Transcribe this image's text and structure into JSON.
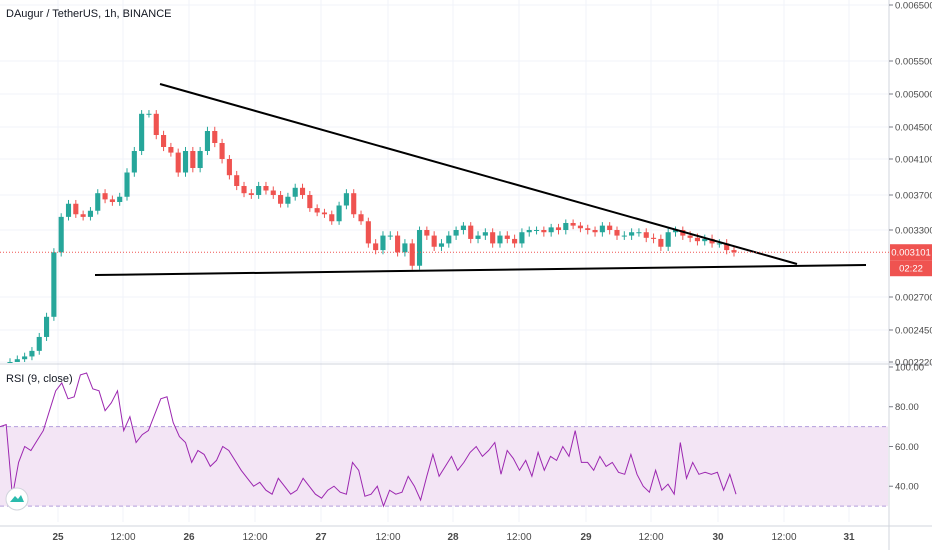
{
  "header": {
    "title": "DAugur / TetherUS, 1h, BINANCE"
  },
  "rsi": {
    "title": "RSI (9, close)"
  },
  "colors": {
    "up": "#26a69a",
    "down": "#ef5350",
    "trendline": "#000000",
    "rsi_line": "#9c27b0",
    "rsi_band": "#f3e5f5",
    "price_line": "#ef5350",
    "grid": "#f0f3fa"
  },
  "icons": {
    "logo": "tradingview-logo-icon"
  },
  "chart_data": [
    {
      "type": "candlestick",
      "title": "DAugur / TetherUS, 1h, BINANCE",
      "ylim": [
        0.0022,
        0.0065
      ],
      "y_ticks": [
        "0.006500",
        "0.005500",
        "0.005000",
        "0.004500",
        "0.004100",
        "0.003700",
        "0.003300",
        "0.002700",
        "0.002450",
        "0.002220"
      ],
      "x_ticks": [
        "25",
        "12:00",
        "26",
        "12:00",
        "27",
        "12:00",
        "28",
        "12:00",
        "29",
        "12:00",
        "30",
        "12:00",
        "31"
      ],
      "last_price_label": "0.003101",
      "last_price": 0.003101,
      "countdown_label": "02:22",
      "candles_close": [
        0.00222,
        0.00224,
        0.00226,
        0.0023,
        0.0024,
        0.00255,
        0.0031,
        0.00345,
        0.0036,
        0.00348,
        0.00345,
        0.00352,
        0.00372,
        0.00365,
        0.00362,
        0.00368,
        0.00395,
        0.0042,
        0.0047,
        0.0047,
        0.0044,
        0.00425,
        0.00418,
        0.00395,
        0.0042,
        0.004,
        0.0042,
        0.00445,
        0.0043,
        0.0041,
        0.00392,
        0.0038,
        0.00372,
        0.0037,
        0.0038,
        0.00375,
        0.0037,
        0.0036,
        0.00368,
        0.00378,
        0.0037,
        0.00355,
        0.0035,
        0.00348,
        0.0034,
        0.00358,
        0.00372,
        0.00348,
        0.0034,
        0.00318,
        0.00312,
        0.00325,
        0.00325,
        0.0031,
        0.00318,
        0.00298,
        0.0033,
        0.00325,
        0.00315,
        0.00318,
        0.00325,
        0.0033,
        0.00335,
        0.00322,
        0.00325,
        0.00328,
        0.00318,
        0.00325,
        0.00322,
        0.00318,
        0.00328,
        0.0033,
        0.0033,
        0.00328,
        0.00333,
        0.0033,
        0.00338,
        0.00335,
        0.00332,
        0.0033,
        0.00328,
        0.00335,
        0.0033,
        0.00325,
        0.00325,
        0.00328,
        0.00328,
        0.00323,
        0.00322,
        0.00315,
        0.00328,
        0.0033,
        0.00325,
        0.00323,
        0.0032,
        0.00322,
        0.00318,
        0.00318,
        0.00312,
        0.0031
      ]
    },
    {
      "type": "line",
      "title": "RSI (9, close)",
      "ylim": [
        22,
        100
      ],
      "y_ticks": [
        "100.00",
        "80.00",
        "60.00",
        "40.00"
      ],
      "band": [
        30,
        70
      ],
      "values": [
        70,
        71,
        35,
        52,
        60,
        58,
        63,
        68,
        78,
        88,
        92,
        84,
        85,
        96,
        97,
        89,
        88,
        78,
        82,
        88,
        68,
        75,
        62,
        66,
        68,
        76,
        84,
        85,
        72,
        65,
        62,
        52,
        58,
        56,
        50,
        53,
        60,
        58,
        53,
        48,
        44,
        40,
        42,
        38,
        36,
        44,
        40,
        36,
        38,
        44,
        40,
        36,
        34,
        38,
        40,
        37,
        36,
        52,
        48,
        35,
        36,
        40,
        30,
        38,
        36,
        37,
        45,
        40,
        33,
        45,
        56,
        45,
        50,
        55,
        48,
        52,
        57,
        60,
        55,
        58,
        62,
        46,
        58,
        54,
        48,
        53,
        45,
        57,
        48,
        55,
        53,
        60,
        55,
        68,
        52,
        52,
        48,
        55,
        50,
        52,
        47,
        46,
        56,
        46,
        40,
        37,
        48,
        38,
        41,
        36,
        62,
        44,
        52,
        46,
        47,
        46,
        47,
        38,
        46,
        36
      ]
    }
  ]
}
